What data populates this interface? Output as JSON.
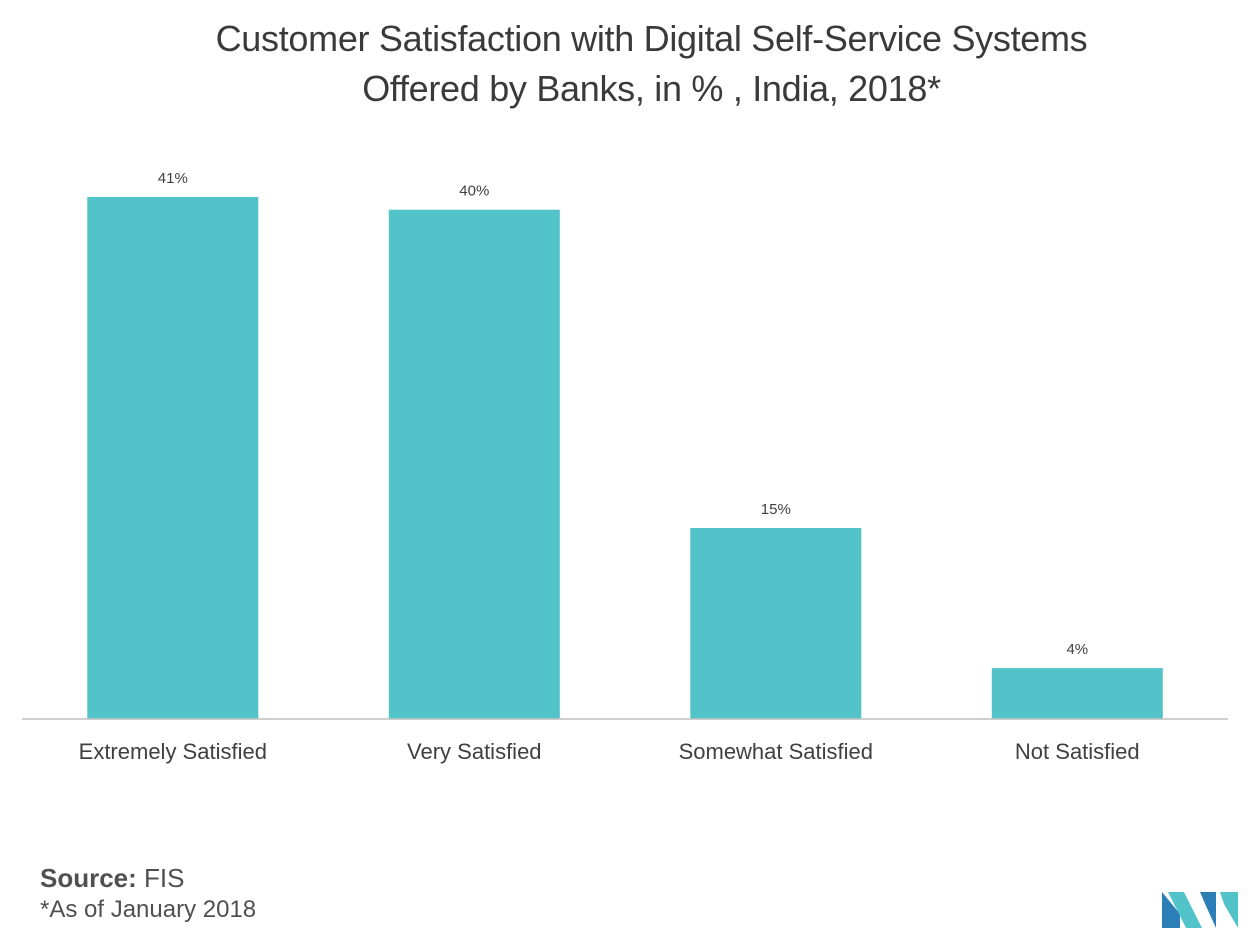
{
  "chart_data": {
    "type": "bar",
    "title": "Customer Satisfaction with Digital Self-Service Systems Offered by Banks, in % , India, 2018*",
    "title_lines": [
      "Customer Satisfaction with Digital Self-Service Systems",
      "Offered by Banks, in % , India, 2018*"
    ],
    "categories": [
      "Extremely Satisfied",
      "Very Satisfied",
      "Somewhat Satisfied",
      "Not Satisfied"
    ],
    "values": [
      41,
      40,
      15,
      4
    ],
    "data_labels": [
      "41%",
      "40%",
      "15%",
      "4%"
    ],
    "xlabel": "",
    "ylabel": "",
    "ylim": [
      0,
      41
    ],
    "grid": false,
    "legend": "none",
    "bar_color": "#52c3c9",
    "axis_color": "#bfbfbf"
  },
  "source": {
    "label": "Source:",
    "value": " FIS"
  },
  "footnote": "*As of January 2018",
  "logo": {
    "icon": "mordor-intelligence-logo-icon",
    "colors": [
      "#2b7fb6",
      "#52c3c9"
    ]
  }
}
